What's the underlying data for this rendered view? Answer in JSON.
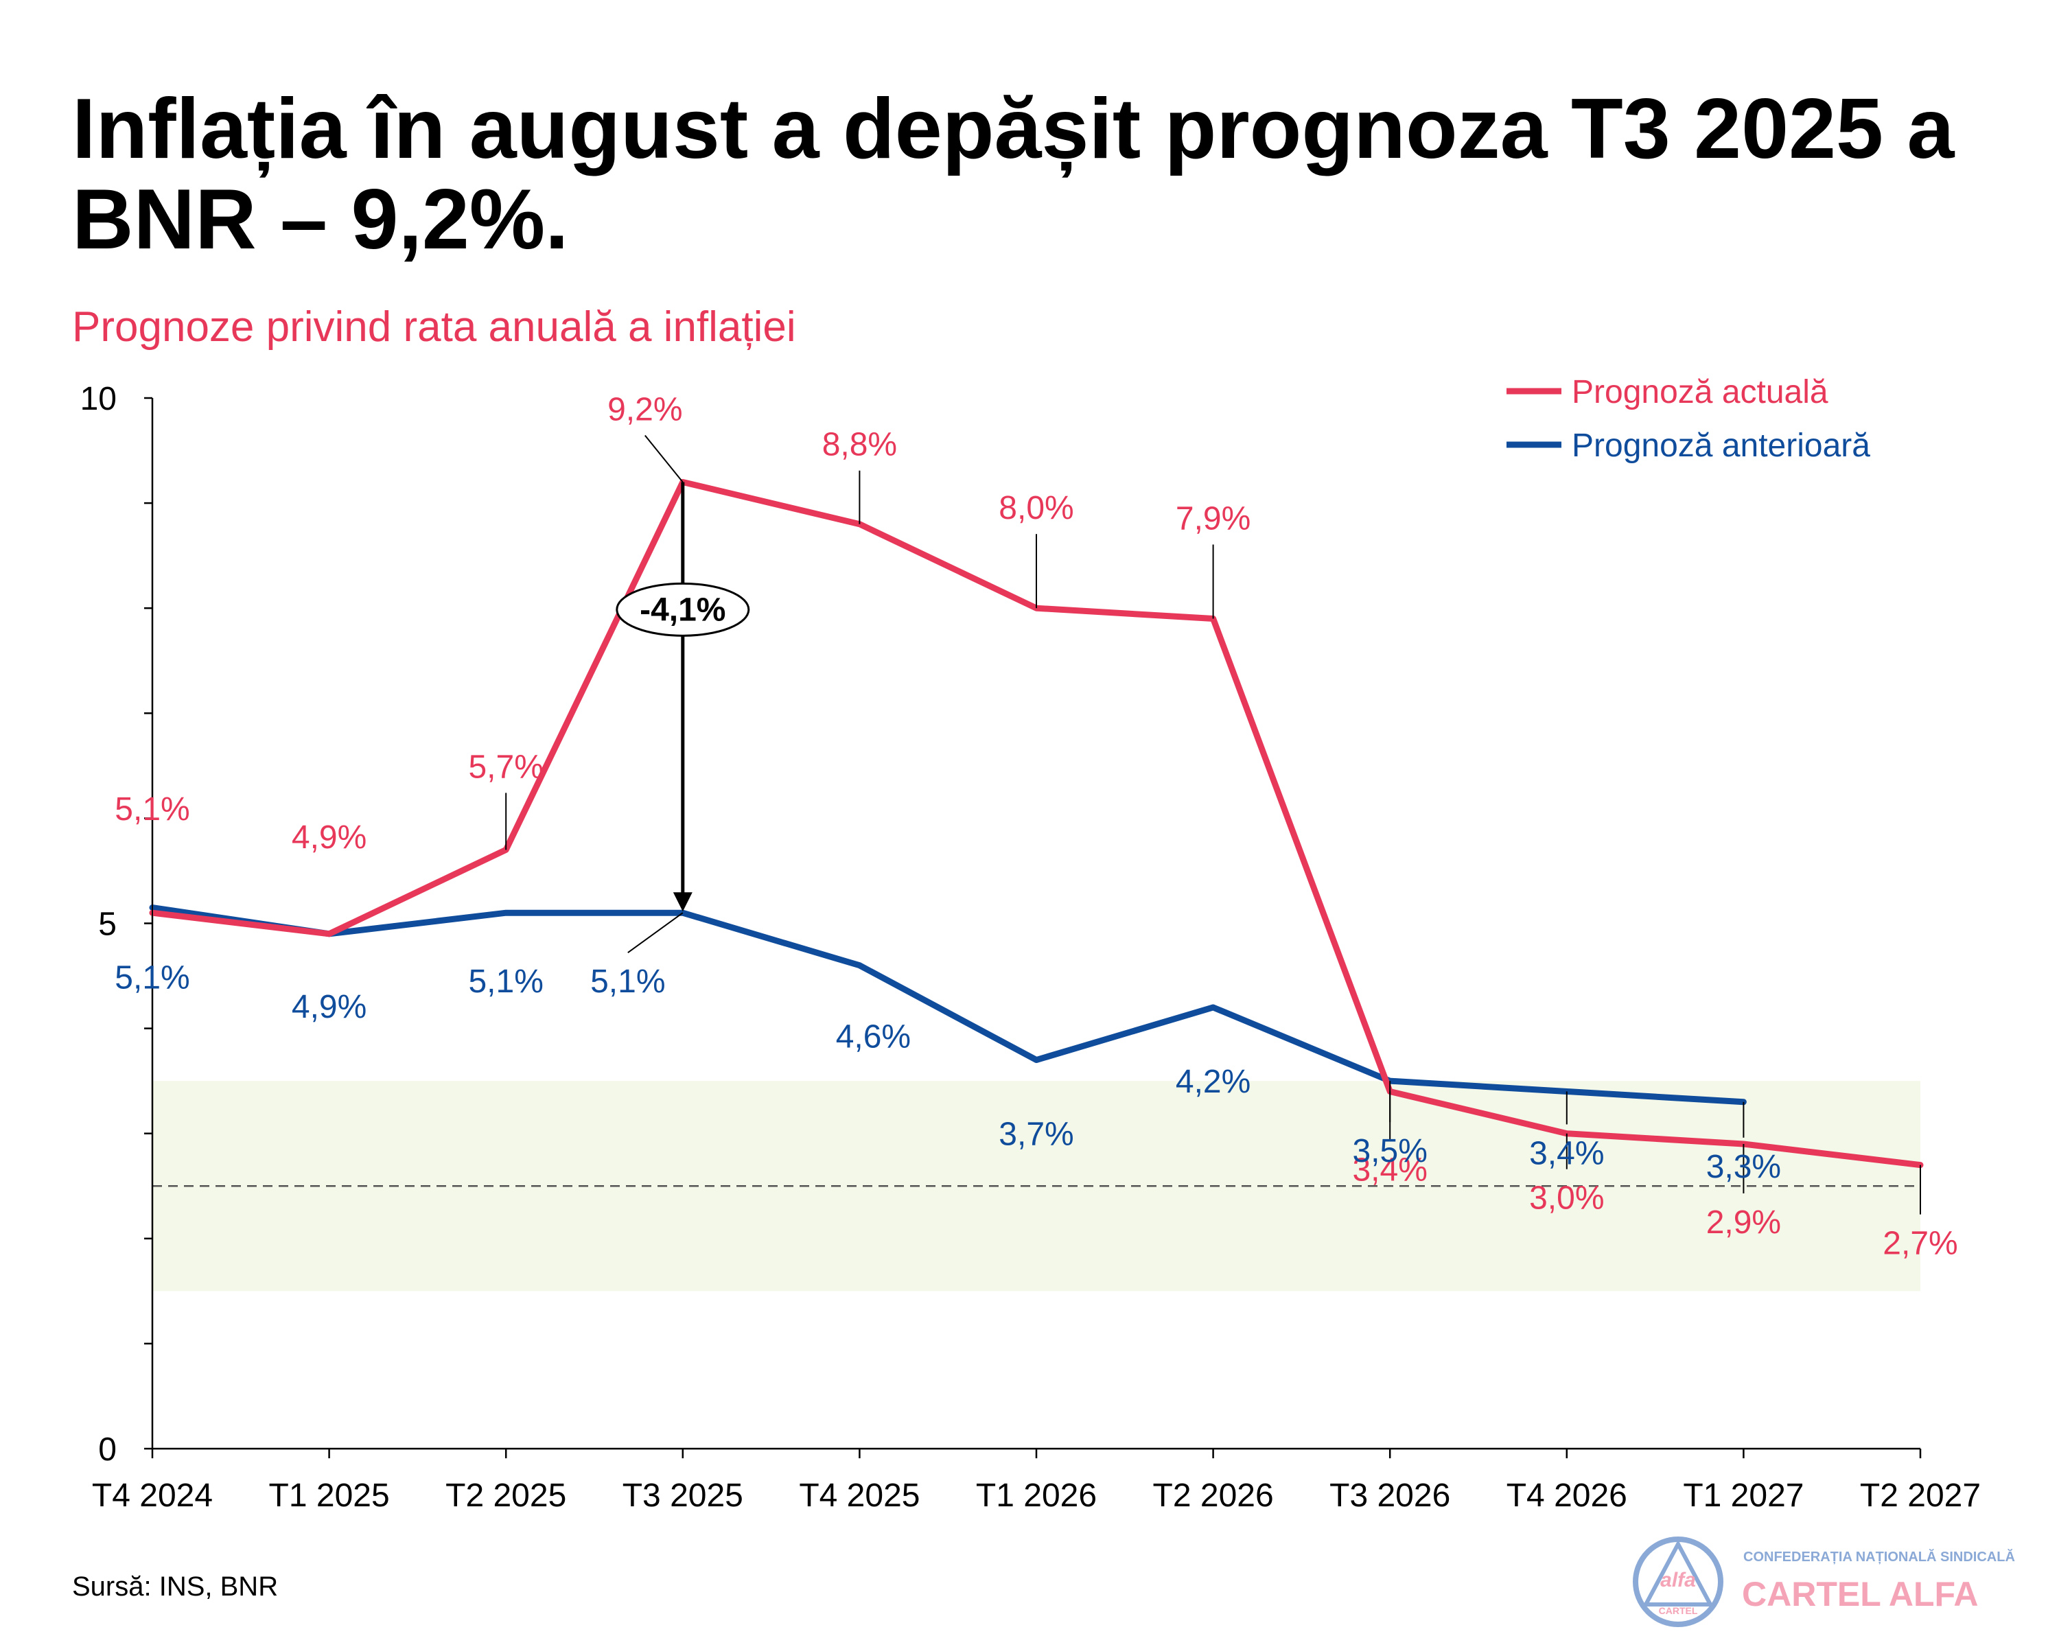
{
  "chart_data": {
    "type": "line",
    "title_line1": "Inflația în august a depășit prognoza T3 2025 a",
    "title_line2": "BNR – 9,2%.",
    "subtitle": "Prognoze privind rata anuală a inflației",
    "categories": [
      "T4 2024",
      "T1 2025",
      "T2 2025",
      "T3 2025",
      "T4 2025",
      "T1 2026",
      "T2 2026",
      "T3 2026",
      "T4 2026",
      "T1 2027",
      "T2 2027"
    ],
    "ylim": [
      0,
      10
    ],
    "y_ticks": [
      "0",
      "5",
      "10"
    ],
    "target_band": [
      1.5,
      3.5
    ],
    "target_line": 2.5,
    "series": [
      {
        "name": "Prognoză actuală",
        "color": "#e8385a",
        "values": [
          5.1,
          4.9,
          5.7,
          9.2,
          8.8,
          8.0,
          7.9,
          3.4,
          3.0,
          2.9,
          2.7
        ],
        "labels": [
          "5,1%",
          "4,9%",
          "5,7%",
          "9,2%",
          "8,8%",
          "8,0%",
          "7,9%",
          "3,4%",
          "3,0%",
          "2,9%",
          "2,7%"
        ]
      },
      {
        "name": "Prognoză anterioară",
        "color": "#0f4c9c",
        "values": [
          5.15,
          4.9,
          5.1,
          5.1,
          4.6,
          3.7,
          4.2,
          3.5,
          3.4,
          3.3,
          null
        ],
        "labels": [
          "5,1%",
          "4,9%",
          "5,1%",
          "5,1%",
          "4,6%",
          "3,7%",
          "4,2%",
          "3,5%",
          "3,4%",
          "3,3%",
          ""
        ]
      }
    ],
    "annotation": {
      "text": "-4,1%",
      "category": "T3 2025"
    },
    "source": "Sursă: INS, BNR"
  },
  "logo": {
    "top_text": "CONFEDERAȚIA NAȚIONALĂ SINDICALĂ",
    "name": "CARTEL ALFA",
    "mark_word": "alfa",
    "mark_sub": "CARTEL"
  },
  "colors": {
    "band": "#f4f8e8",
    "logo_pink": "#f4a4b6",
    "logo_blue": "#8ba9d6"
  }
}
